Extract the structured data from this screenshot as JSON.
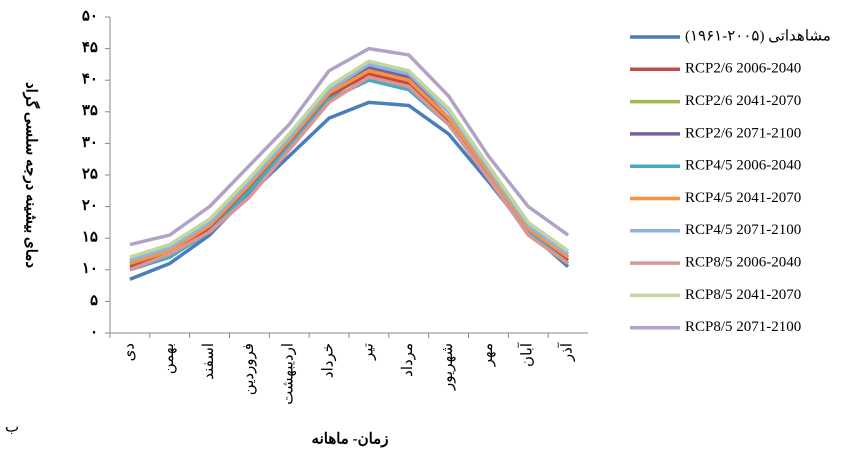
{
  "chart_data": {
    "type": "line",
    "y_label": "دمای بیشینه درجه سلسی گراد",
    "x_label": "زمان- ماهانه",
    "panel_label": "ب",
    "categories": [
      "دی",
      "بهمن",
      "اسفند",
      "فروردین",
      "اردیبهشت",
      "خرداد",
      "تیر",
      "مرداد",
      "شهریور",
      "مهر",
      "آبان",
      "آذر"
    ],
    "ylim": [
      0,
      50
    ],
    "yticks": [
      {
        "value": 0,
        "label": "٠"
      },
      {
        "value": 5,
        "label": "۵"
      },
      {
        "value": 10,
        "label": "۱۰"
      },
      {
        "value": 15,
        "label": "۱۵"
      },
      {
        "value": 20,
        "label": "۲۰"
      },
      {
        "value": 25,
        "label": "۲۵"
      },
      {
        "value": 30,
        "label": "۳۰"
      },
      {
        "value": 35,
        "label": "۳۵"
      },
      {
        "value": 40,
        "label": "۴۰"
      },
      {
        "value": 45,
        "label": "۴۵"
      },
      {
        "value": 50,
        "label": "۵۰"
      }
    ],
    "grid": false,
    "legend": "right",
    "series": [
      {
        "name": "مشاهداتی (۲۰۰۵-۱۹۶۱)",
        "color": "#4a7ebb",
        "values": [
          8.5,
          11,
          15.5,
          22,
          28,
          34,
          36.5,
          36,
          31.5,
          24,
          16,
          10.5
        ]
      },
      {
        "name": "RCP2/6 2006-2040",
        "color": "#be4b48",
        "values": [
          10.5,
          12.5,
          16.5,
          23,
          30,
          37.5,
          41,
          39.5,
          33.5,
          25,
          16,
          11.5
        ]
      },
      {
        "name": "RCP2/6 2041-2070",
        "color": "#98b954",
        "values": [
          11.5,
          13.5,
          17.5,
          24,
          31,
          38.5,
          42.5,
          41,
          35,
          26,
          17,
          12.5
        ]
      },
      {
        "name": "RCP2/6 2071-2100",
        "color": "#7d60a0",
        "values": [
          11,
          13,
          17,
          23.5,
          30.5,
          38,
          42,
          40.5,
          34,
          25.5,
          16.5,
          12
        ]
      },
      {
        "name": "RCP4/5 2006-2040",
        "color": "#46aac5",
        "values": [
          10,
          12,
          16,
          22.5,
          29.5,
          37,
          40,
          38.5,
          33,
          24.5,
          16,
          11
        ]
      },
      {
        "name": "RCP4/5 2041-2070",
        "color": "#f69240",
        "values": [
          11,
          13,
          17,
          23.5,
          30.5,
          38,
          41.5,
          40,
          34,
          25.5,
          16.5,
          12
        ]
      },
      {
        "name": "RCP4/5 2071-2100",
        "color": "#8eb4e3",
        "values": [
          11.5,
          13.5,
          17.5,
          24,
          31,
          38.5,
          42.5,
          41,
          35,
          26,
          17,
          12.5
        ]
      },
      {
        "name": "RCP8/5 2006-2040",
        "color": "#d99694",
        "values": [
          10,
          12.5,
          16,
          21.5,
          29,
          36.5,
          40.5,
          39,
          33,
          24.5,
          15.5,
          11
        ]
      },
      {
        "name": "RCP8/5 2041-2070",
        "color": "#c3d69b",
        "values": [
          12,
          14,
          18,
          24.5,
          31.5,
          39,
          43,
          41.5,
          35.5,
          26.5,
          17.5,
          13
        ]
      },
      {
        "name": "RCP8/5 2071-2100",
        "color": "#b3a2c7",
        "values": [
          14,
          15.5,
          20,
          26.5,
          33,
          41.5,
          45,
          44,
          37.5,
          28,
          20,
          15.5
        ]
      }
    ]
  }
}
